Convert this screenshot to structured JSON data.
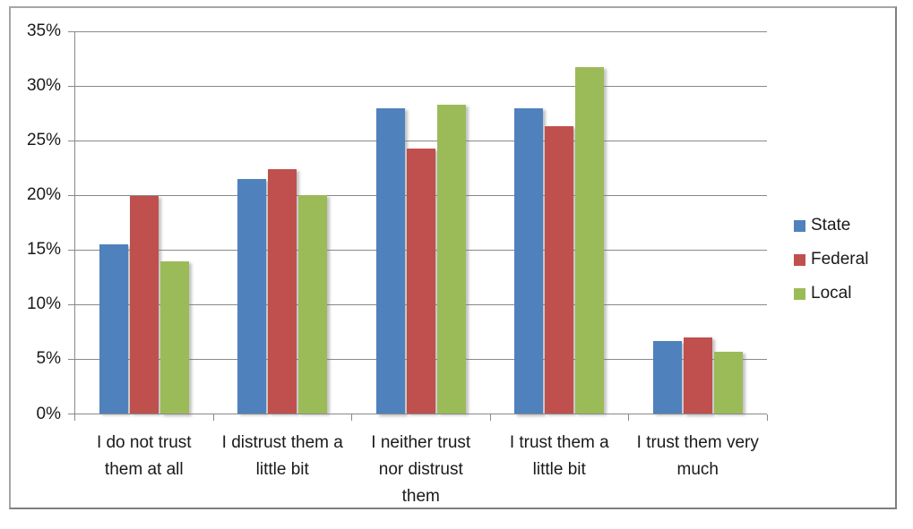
{
  "chart_data": {
    "type": "bar",
    "title": "",
    "xlabel": "",
    "ylabel": "",
    "ylim": [
      0,
      35
    ],
    "y_tick_step": 5,
    "y_tick_labels": [
      "0%",
      "5%",
      "10%",
      "15%",
      "20%",
      "25%",
      "30%",
      "35%"
    ],
    "grid": true,
    "legend_position": "right",
    "categories": [
      "I do not trust them at all",
      "I distrust them a little bit",
      "I neither trust nor distrust them",
      "I trust them a little bit",
      "I trust them very much"
    ],
    "category_label_lines": [
      [
        "I do not trust",
        "them at all"
      ],
      [
        "I distrust them a",
        "little bit"
      ],
      [
        "I neither trust",
        "nor distrust",
        "them"
      ],
      [
        "I trust them a",
        "little bit"
      ],
      [
        "I trust them very",
        "much"
      ]
    ],
    "series": [
      {
        "name": "State",
        "color": "#4f81bd",
        "values": [
          15.5,
          21.5,
          28.0,
          28.0,
          6.7
        ]
      },
      {
        "name": "Federal",
        "color": "#c0504d",
        "values": [
          19.9,
          22.4,
          24.3,
          26.3,
          7.0
        ]
      },
      {
        "name": "Local",
        "color": "#9bbb59",
        "values": [
          14.0,
          20.0,
          28.3,
          31.7,
          5.7
        ]
      }
    ]
  },
  "colors": {
    "grid": "#898989",
    "axis": "#898989",
    "text": "#1a1a1a",
    "frame_border_light": "#a6a6a6",
    "frame_border_dark": "#7f7f7f",
    "background": "#ffffff"
  }
}
